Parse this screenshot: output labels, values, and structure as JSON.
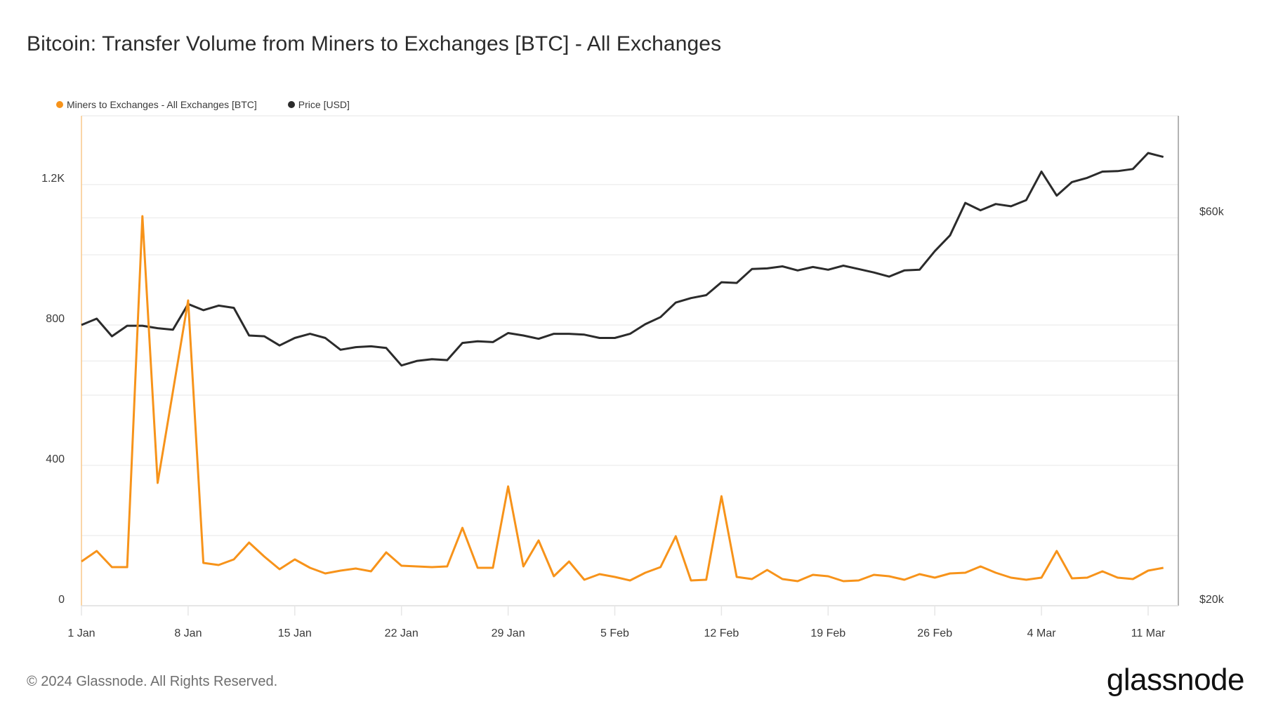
{
  "header": {
    "title": "Bitcoin: Transfer Volume from Miners to Exchanges [BTC] - All Exchanges"
  },
  "legend": [
    {
      "label": "Miners to Exchanges - All Exchanges [BTC]",
      "color": "#f7931a"
    },
    {
      "label": "Price [USD]",
      "color": "#2b2b2b"
    }
  ],
  "footer": {
    "copyright": "© 2024 Glassnode. All Rights Reserved.",
    "logo": "glassnode"
  },
  "chart_data": {
    "type": "line",
    "title": "Bitcoin: Transfer Volume from Miners to Exchanges [BTC] - All Exchanges",
    "xlabel": "",
    "ylabel": "",
    "grid": true,
    "legend_position": "top-left",
    "x_ticks": [
      "1 Jan",
      "8 Jan",
      "15 Jan",
      "22 Jan",
      "29 Jan",
      "5 Feb",
      "12 Feb",
      "19 Feb",
      "26 Feb",
      "4 Mar",
      "11 Mar"
    ],
    "x_tick_day_index": [
      0,
      7,
      14,
      21,
      28,
      35,
      42,
      49,
      56,
      63,
      70
    ],
    "x_start": "2024-01-01",
    "x_end": "2024-03-12",
    "y_left": {
      "label": "BTC",
      "ticks": [
        "0",
        "400",
        "800",
        "1.2K"
      ],
      "tick_values": [
        0,
        400,
        800,
        1200
      ],
      "range": [
        0,
        1400
      ],
      "gridlines": [
        0,
        200,
        400,
        600,
        800,
        1000,
        1200
      ]
    },
    "y_right": {
      "label": "USD",
      "scale": "log",
      "ticks": [
        "$20k",
        "$60k"
      ],
      "tick_values": [
        20000,
        60000
      ],
      "gridlines": [
        20000,
        40000,
        60000
      ]
    },
    "series": [
      {
        "name": "Miners to Exchanges - All Exchanges [BTC]",
        "axis": "left",
        "color": "#f7931a",
        "values": [
          126,
          156,
          110,
          110,
          1110,
          350,
          610,
          870,
          122,
          116,
          132,
          180,
          140,
          104,
          132,
          108,
          92,
          100,
          106,
          98,
          152,
          114,
          112,
          110,
          112,
          222,
          108,
          108,
          340,
          112,
          186,
          84,
          126,
          74,
          90,
          82,
          72,
          94,
          110,
          198,
          72,
          74,
          312,
          82,
          76,
          102,
          76,
          70,
          88,
          84,
          70,
          72,
          88,
          84,
          74,
          90,
          80,
          92,
          94,
          112,
          94,
          80,
          74,
          80,
          156,
          78,
          80,
          98,
          80,
          76,
          100,
          108
        ]
      },
      {
        "name": "Price [USD]",
        "axis": "right",
        "color": "#2b2b2b",
        "values": [
          44300,
          45100,
          42900,
          44200,
          44200,
          43900,
          43700,
          47000,
          46200,
          46800,
          46500,
          43000,
          42900,
          41800,
          42700,
          43200,
          42700,
          41300,
          41600,
          41700,
          41500,
          39500,
          40000,
          40200,
          40100,
          42100,
          42300,
          42200,
          43300,
          43000,
          42600,
          43200,
          43200,
          43100,
          42700,
          42700,
          43200,
          44400,
          45300,
          47200,
          47800,
          48200,
          50000,
          49900,
          51900,
          52000,
          52300,
          51700,
          52200,
          51800,
          52400,
          51900,
          51400,
          50800,
          51700,
          51800,
          54600,
          57100,
          62600,
          61300,
          62400,
          62000,
          63100,
          68400,
          63900,
          66400,
          67200,
          68400,
          68500,
          68900,
          72100,
          71300
        ]
      }
    ]
  }
}
